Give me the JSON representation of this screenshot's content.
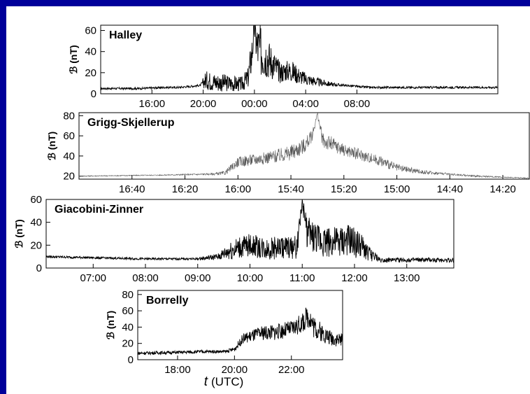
{
  "colors": {
    "background": "#00009a",
    "slide": "#ffffff",
    "trace": "#000000",
    "trace_light": "#555555"
  },
  "x_axis_label": {
    "symbol": "t",
    "unit": "(UTC)"
  },
  "chart_data": [
    {
      "type": "line",
      "title": "Halley",
      "ylabel": "ℬ (nT)",
      "ylim": [
        0,
        65
      ],
      "yticks": [
        "0",
        "20",
        "40",
        "60"
      ],
      "xlim": [
        -12,
        19
      ],
      "xticks": [
        {
          "t": -8,
          "label": "16:00"
        },
        {
          "t": -4,
          "label": "20:00"
        },
        {
          "t": 0,
          "label": "00:00"
        },
        {
          "t": 4,
          "label": "04:00"
        },
        {
          "t": 8,
          "label": "08:00"
        }
      ],
      "series": [
        {
          "x": [
            -12,
            -9,
            -7,
            -6,
            -5,
            -4.2,
            -3.8,
            -3,
            -2,
            -1,
            -0.5,
            -0.2,
            0,
            0.2,
            0.5,
            1,
            1.5,
            2,
            2.5,
            3,
            3.5,
            4,
            5,
            6,
            7,
            8,
            9,
            10,
            12,
            15,
            19
          ],
          "y": [
            5,
            5,
            6,
            6,
            7,
            8,
            13,
            11,
            10,
            9,
            15,
            38,
            62,
            45,
            40,
            35,
            28,
            20,
            22,
            21,
            17,
            14,
            11,
            9,
            8,
            7,
            6,
            6,
            6,
            6,
            6
          ],
          "spread": [
            1,
            1,
            1,
            1,
            1,
            1,
            9,
            9,
            8,
            7,
            10,
            20,
            10,
            25,
            25,
            20,
            15,
            10,
            10,
            10,
            8,
            6,
            4,
            2,
            1,
            1,
            1,
            1,
            1,
            1,
            1
          ]
        }
      ]
    },
    {
      "type": "line",
      "title": "Grigg-Skjellerup",
      "ylabel": "ℬ (nT)",
      "ylim": [
        17,
        83
      ],
      "yticks": [
        "20",
        "40",
        "60",
        "80"
      ],
      "xlim": [
        -60,
        110
      ],
      "xticks": [
        {
          "t": -40,
          "label": "16:40"
        },
        {
          "t": -20,
          "label": "16:20"
        },
        {
          "t": 0,
          "label": "16:00"
        },
        {
          "t": 20,
          "label": "15:40"
        },
        {
          "t": 40,
          "label": "15:20"
        },
        {
          "t": 60,
          "label": "15:00"
        },
        {
          "t": 80,
          "label": "14:40"
        },
        {
          "t": 100,
          "label": "14:20"
        }
      ],
      "series": [
        {
          "x": [
            -60,
            -30,
            -10,
            -5,
            0,
            5,
            10,
            15,
            20,
            25,
            28,
            30,
            32,
            35,
            40,
            45,
            50,
            55,
            60,
            70,
            80,
            90,
            100,
            110
          ],
          "y": [
            20,
            21,
            22,
            23,
            34,
            36,
            38,
            40,
            43,
            50,
            60,
            82,
            55,
            52,
            46,
            42,
            38,
            34,
            28,
            24,
            22,
            20,
            19,
            18
          ],
          "spread": [
            0.5,
            0.5,
            1,
            2,
            5,
            6,
            6,
            7,
            8,
            8,
            6,
            2,
            8,
            8,
            6,
            6,
            5,
            5,
            4,
            2,
            1,
            1,
            0.5,
            0.5
          ]
        }
      ]
    },
    {
      "type": "line",
      "title": "Giacobini-Zinner",
      "ylabel": "ℬ (nT)",
      "ylim": [
        0,
        60
      ],
      "yticks": [
        "0",
        "20",
        "40",
        "60"
      ],
      "xlim": [
        6.1,
        13.9
      ],
      "xticks": [
        {
          "t": 7,
          "label": "07:00"
        },
        {
          "t": 8,
          "label": "08:00"
        },
        {
          "t": 9,
          "label": "09:00"
        },
        {
          "t": 10,
          "label": "10:00"
        },
        {
          "t": 11,
          "label": "11:00"
        },
        {
          "t": 12,
          "label": "12:00"
        },
        {
          "t": 13,
          "label": "13:00"
        }
      ],
      "series": [
        {
          "x": [
            6.1,
            7,
            8,
            9,
            9.4,
            9.6,
            9.8,
            10,
            10.3,
            10.6,
            10.9,
            11,
            11.1,
            11.3,
            11.6,
            11.9,
            12.1,
            12.3,
            12.5,
            13,
            13.9
          ],
          "y": [
            10,
            9,
            8,
            8,
            10,
            15,
            18,
            20,
            17,
            18,
            18,
            58,
            30,
            25,
            22,
            24,
            20,
            12,
            7,
            7,
            7
          ],
          "spread": [
            1,
            1,
            1,
            1,
            3,
            8,
            10,
            10,
            10,
            10,
            10,
            5,
            15,
            14,
            14,
            14,
            12,
            6,
            2,
            2,
            2
          ]
        }
      ]
    },
    {
      "type": "line",
      "title": "Borrelly",
      "ylabel": "ℬ (nT)",
      "ylim": [
        0,
        85
      ],
      "yticks": [
        "0",
        "20",
        "40",
        "60",
        "80"
      ],
      "xlim": [
        16.6,
        23.8
      ],
      "xticks": [
        {
          "t": 18,
          "label": "18:00"
        },
        {
          "t": 20,
          "label": "20:00"
        },
        {
          "t": 22,
          "label": "22:00"
        }
      ],
      "series": [
        {
          "x": [
            16.6,
            18,
            19,
            19.7,
            20,
            20.3,
            20.7,
            21,
            21.5,
            22,
            22.4,
            22.6,
            22.8,
            23,
            23.3,
            23.6,
            23.8
          ],
          "y": [
            8,
            9,
            10,
            10,
            13,
            26,
            30,
            33,
            34,
            38,
            45,
            55,
            40,
            35,
            28,
            25,
            24
          ],
          "spread": [
            2,
            2,
            2,
            2,
            3,
            6,
            8,
            9,
            10,
            10,
            12,
            15,
            14,
            12,
            10,
            9,
            8
          ]
        }
      ]
    }
  ]
}
